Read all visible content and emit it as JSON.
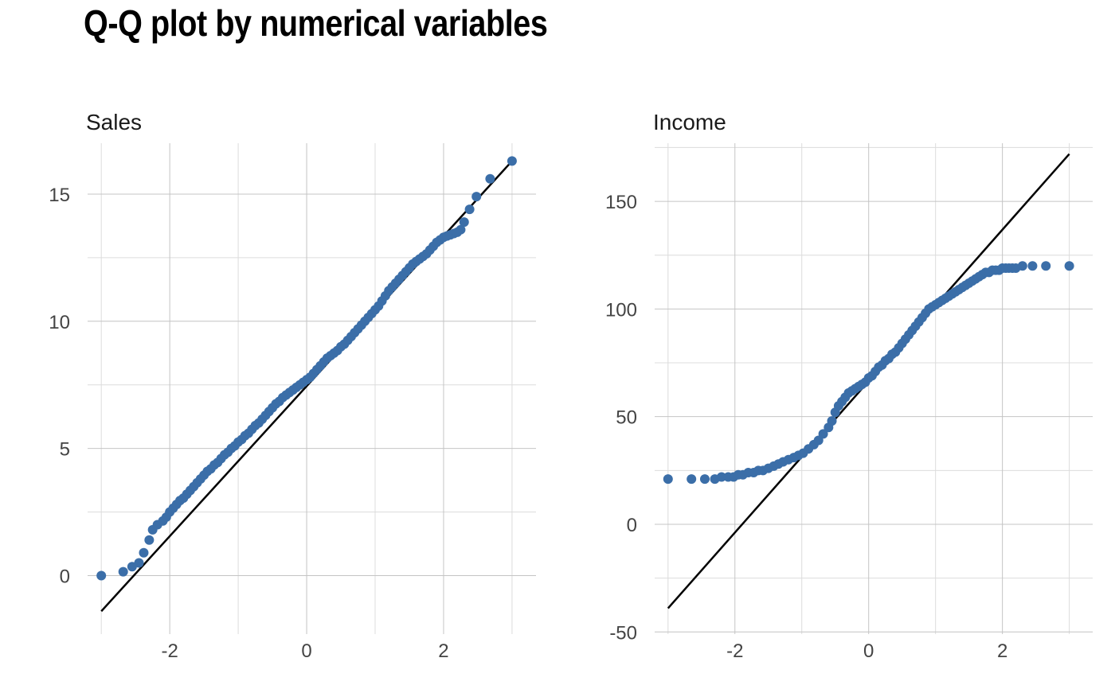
{
  "title": "Q-Q plot by numerical variables",
  "colors": {
    "points": "#3b6ea8",
    "reference_line": "#000000",
    "grid": "#c4c4c4"
  },
  "chart_data": [
    {
      "type": "scatter",
      "title": "Sales",
      "xlabel": "",
      "ylabel": "",
      "xlim": [
        -3.2,
        3.35
      ],
      "ylim": [
        -2.3,
        17.0
      ],
      "x_ticks": [
        -2,
        0,
        2
      ],
      "y_ticks": [
        0,
        5,
        10,
        15
      ],
      "grid": true,
      "legend": "none",
      "reference_line": {
        "x": [
          -3.0,
          3.0
        ],
        "y": [
          -1.4,
          16.3
        ]
      },
      "series": [
        {
          "x": [
            -3.0,
            -2.68,
            -2.55,
            -2.45,
            -2.38,
            -2.3,
            -2.25,
            -2.18,
            -2.1,
            -2.05,
            -2.0,
            -1.95,
            -1.9,
            -1.85,
            -1.8,
            -1.75,
            -1.7,
            -1.65,
            -1.6,
            -1.55,
            -1.5,
            -1.45,
            -1.4,
            -1.35,
            -1.3,
            -1.25,
            -1.2,
            -1.15,
            -1.1,
            -1.05,
            -1.0,
            -0.95,
            -0.9,
            -0.85,
            -0.8,
            -0.75,
            -0.7,
            -0.65,
            -0.6,
            -0.55,
            -0.5,
            -0.45,
            -0.4,
            -0.35,
            -0.3,
            -0.25,
            -0.2,
            -0.15,
            -0.1,
            -0.05,
            0.0,
            0.05,
            0.1,
            0.15,
            0.2,
            0.25,
            0.3,
            0.35,
            0.4,
            0.45,
            0.5,
            0.55,
            0.6,
            0.65,
            0.7,
            0.75,
            0.8,
            0.85,
            0.9,
            0.95,
            1.0,
            1.05,
            1.1,
            1.15,
            1.2,
            1.25,
            1.3,
            1.35,
            1.4,
            1.45,
            1.5,
            1.55,
            1.6,
            1.65,
            1.7,
            1.75,
            1.8,
            1.85,
            1.9,
            1.95,
            2.0,
            2.05,
            2.1,
            2.15,
            2.2,
            2.25,
            2.3,
            2.38,
            2.48,
            2.68,
            3.0
          ],
          "y": [
            0.0,
            0.15,
            0.35,
            0.5,
            0.9,
            1.4,
            1.8,
            2.0,
            2.15,
            2.3,
            2.5,
            2.65,
            2.8,
            2.95,
            3.05,
            3.2,
            3.35,
            3.5,
            3.65,
            3.8,
            3.95,
            4.1,
            4.2,
            4.35,
            4.45,
            4.6,
            4.75,
            4.85,
            5.0,
            5.1,
            5.25,
            5.35,
            5.5,
            5.6,
            5.75,
            5.9,
            6.0,
            6.15,
            6.3,
            6.45,
            6.6,
            6.75,
            6.85,
            7.0,
            7.1,
            7.2,
            7.3,
            7.4,
            7.5,
            7.6,
            7.7,
            7.8,
            7.95,
            8.1,
            8.25,
            8.4,
            8.55,
            8.65,
            8.75,
            8.85,
            9.0,
            9.1,
            9.25,
            9.4,
            9.55,
            9.7,
            9.85,
            10.0,
            10.15,
            10.3,
            10.45,
            10.6,
            10.8,
            11.0,
            11.2,
            11.35,
            11.5,
            11.65,
            11.8,
            11.95,
            12.1,
            12.25,
            12.35,
            12.45,
            12.55,
            12.65,
            12.8,
            12.95,
            13.1,
            13.2,
            13.3,
            13.35,
            13.4,
            13.45,
            13.5,
            13.6,
            13.9,
            14.4,
            14.9,
            15.6,
            16.3
          ]
        }
      ]
    },
    {
      "type": "scatter",
      "title": "Income",
      "xlabel": "",
      "ylabel": "",
      "xlim": [
        -3.2,
        3.35
      ],
      "ylim": [
        -51.0,
        177.0
      ],
      "x_ticks": [
        -2,
        0,
        2
      ],
      "y_ticks": [
        -50,
        0,
        50,
        100,
        150
      ],
      "grid": true,
      "legend": "none",
      "reference_line": {
        "x": [
          -3.0,
          3.0
        ],
        "y": [
          -39.0,
          172.0
        ]
      },
      "series": [
        {
          "x": [
            -3.0,
            -2.65,
            -2.45,
            -2.3,
            -2.2,
            -2.1,
            -2.02,
            -1.95,
            -1.88,
            -1.8,
            -1.72,
            -1.65,
            -1.58,
            -1.5,
            -1.42,
            -1.35,
            -1.28,
            -1.2,
            -1.12,
            -1.05,
            -0.98,
            -0.9,
            -0.82,
            -0.75,
            -0.68,
            -0.6,
            -0.55,
            -0.5,
            -0.45,
            -0.4,
            -0.35,
            -0.3,
            -0.25,
            -0.2,
            -0.15,
            -0.1,
            -0.05,
            0.0,
            0.05,
            0.1,
            0.15,
            0.2,
            0.25,
            0.3,
            0.35,
            0.4,
            0.45,
            0.5,
            0.55,
            0.6,
            0.65,
            0.7,
            0.75,
            0.8,
            0.85,
            0.9,
            0.95,
            1.0,
            1.05,
            1.1,
            1.15,
            1.2,
            1.25,
            1.3,
            1.35,
            1.4,
            1.45,
            1.5,
            1.55,
            1.6,
            1.65,
            1.7,
            1.75,
            1.8,
            1.85,
            1.9,
            1.95,
            2.0,
            2.05,
            2.1,
            2.15,
            2.2,
            2.3,
            2.45,
            2.65,
            3.0
          ],
          "y": [
            21,
            21,
            21,
            21,
            22,
            22,
            22,
            23,
            23,
            24,
            24,
            25,
            25,
            26,
            27,
            28,
            29,
            30,
            31,
            32,
            33,
            35,
            37,
            39,
            42,
            45,
            48,
            52,
            55,
            57,
            59,
            61,
            62,
            63,
            64,
            65,
            66,
            68,
            69,
            71,
            73,
            74,
            76,
            77,
            79,
            80,
            82,
            84,
            86,
            88,
            90,
            92,
            94,
            96,
            98,
            100,
            101,
            102,
            103,
            104,
            105,
            106,
            107,
            108,
            109,
            110,
            111,
            112,
            113,
            114,
            115,
            116,
            117,
            117,
            118,
            118,
            118,
            119,
            119,
            119,
            119,
            119,
            120,
            120,
            120,
            120
          ]
        }
      ]
    }
  ]
}
